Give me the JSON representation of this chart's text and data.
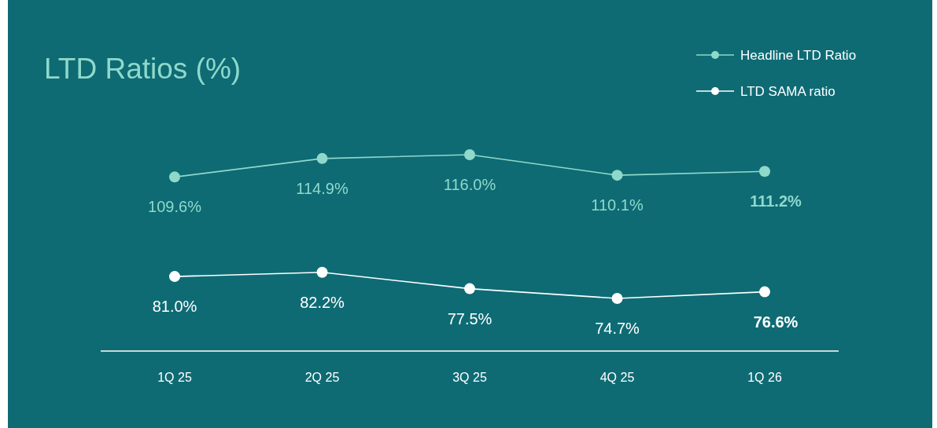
{
  "chart_data": {
    "type": "line",
    "title": "LTD Ratios (%)",
    "categories": [
      "1Q 25",
      "2Q 25",
      "3Q 25",
      "4Q 25",
      "1Q 26"
    ],
    "series": [
      {
        "name": "Headline LTD Ratio",
        "color": "#8fd9cb",
        "values": [
          109.6,
          114.9,
          116.0,
          110.1,
          111.2
        ],
        "value_labels": [
          "109.6%",
          "114.9%",
          "116.0%",
          "110.1%",
          "111.2%"
        ]
      },
      {
        "name": "LTD SAMA ratio",
        "color": "#ffffff",
        "values": [
          81.0,
          82.2,
          77.5,
          74.7,
          76.6
        ],
        "value_labels": [
          "81.0%",
          "82.2%",
          "77.5%",
          "74.7%",
          "76.6%"
        ]
      }
    ],
    "legend": "top right",
    "marker": "circle",
    "tick_labels": "x"
  }
}
